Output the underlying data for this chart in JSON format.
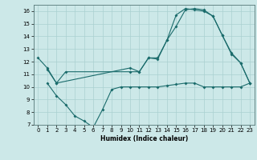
{
  "xlabel": "Humidex (Indice chaleur)",
  "background_color": "#cce8e8",
  "grid_color": "#aad0d0",
  "line_color": "#1a6b6b",
  "xlim": [
    -0.5,
    23.5
  ],
  "ylim": [
    7,
    16.5
  ],
  "xticks": [
    0,
    1,
    2,
    3,
    4,
    5,
    6,
    7,
    8,
    9,
    10,
    11,
    12,
    13,
    14,
    15,
    16,
    17,
    18,
    19,
    20,
    21,
    22,
    23
  ],
  "yticks": [
    7,
    8,
    9,
    10,
    11,
    12,
    13,
    14,
    15,
    16
  ],
  "line1_x": [
    0,
    1,
    2,
    3,
    10,
    11,
    12,
    13,
    14,
    15,
    16,
    17,
    18,
    19,
    20,
    21,
    22,
    23
  ],
  "line1_y": [
    12.3,
    11.5,
    10.3,
    11.2,
    11.2,
    11.2,
    12.3,
    12.2,
    13.7,
    14.8,
    16.1,
    16.2,
    16.1,
    15.6,
    14.1,
    12.7,
    11.9,
    10.3
  ],
  "line2_x": [
    1,
    2,
    10,
    11,
    12,
    13,
    14,
    15,
    16,
    17,
    18,
    19,
    20,
    21,
    22,
    23
  ],
  "line2_y": [
    11.4,
    10.3,
    11.5,
    11.2,
    12.3,
    12.3,
    13.7,
    15.7,
    16.2,
    16.1,
    16.0,
    15.6,
    14.1,
    12.6,
    11.9,
    10.3
  ],
  "line3_x": [
    1,
    2,
    3,
    4,
    5,
    6,
    7,
    8,
    9,
    10,
    11,
    12,
    13,
    14,
    15,
    16,
    17,
    18,
    19,
    20,
    21,
    22,
    23
  ],
  "line3_y": [
    10.3,
    9.3,
    8.6,
    7.7,
    7.3,
    6.8,
    8.2,
    9.8,
    10.0,
    10.0,
    10.0,
    10.0,
    10.0,
    10.1,
    10.2,
    10.3,
    10.3,
    10.0,
    10.0,
    10.0,
    10.0,
    10.0,
    10.3
  ]
}
